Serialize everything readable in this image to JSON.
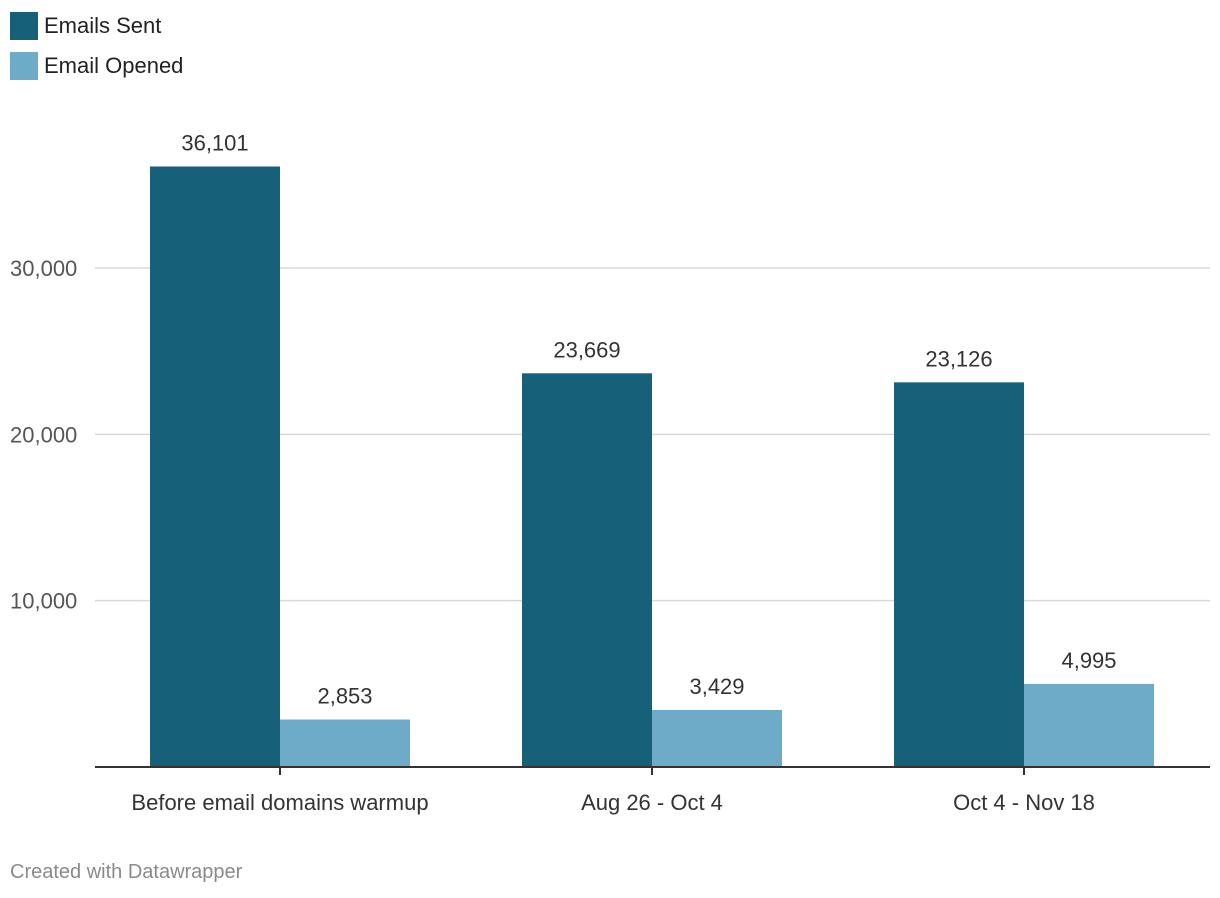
{
  "chart_data": {
    "type": "bar",
    "categories": [
      "Before email domains warmup",
      "Aug 26 - Oct 4",
      "Oct 4 - Nov 18"
    ],
    "series": [
      {
        "name": "Emails Sent",
        "values": [
          36101,
          23669,
          23126
        ],
        "labels": [
          "36,101",
          "23,669",
          "23,126"
        ],
        "color": "#17607a"
      },
      {
        "name": "Email Opened",
        "values": [
          2853,
          3429,
          4995
        ],
        "labels": [
          "2,853",
          "3,429",
          "4,995"
        ],
        "color": "#6eabc8"
      }
    ],
    "y_ticks": [
      10000,
      20000,
      30000
    ],
    "y_tick_labels": [
      "10,000",
      "20,000",
      "30,000"
    ],
    "ylim": [
      0,
      40000
    ],
    "grid": true,
    "legend_position": "top-left"
  },
  "footer": {
    "credit": "Created with Datawrapper"
  }
}
